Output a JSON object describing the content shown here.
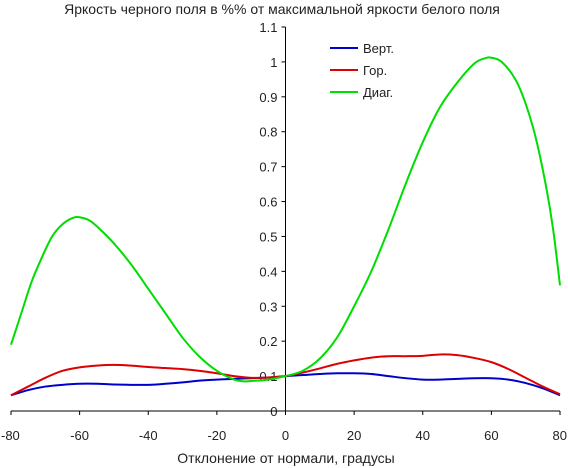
{
  "chart_data": {
    "type": "line",
    "title": "Яркость черного поля в %% от максимальной яркости белого поля",
    "xlabel": "Отклонение от нормали, градусы",
    "ylabel": "",
    "xlim": [
      -80,
      80
    ],
    "ylim": [
      0,
      1.1
    ],
    "x_ticks": [
      -80,
      -60,
      -40,
      -20,
      0,
      20,
      40,
      60,
      80
    ],
    "y_ticks": [
      0,
      0.1,
      0.2,
      0.3,
      0.4,
      0.5,
      0.6,
      0.7,
      0.8,
      0.9,
      1,
      1.1
    ],
    "grid": false,
    "legend_position": "top-right",
    "series": [
      {
        "name": "Верт.",
        "color": "#0000cc",
        "points": [
          [
            -80,
            0.045
          ],
          [
            -75,
            0.06
          ],
          [
            -70,
            0.07
          ],
          [
            -65,
            0.075
          ],
          [
            -60,
            0.078
          ],
          [
            -55,
            0.078
          ],
          [
            -50,
            0.076
          ],
          [
            -45,
            0.075
          ],
          [
            -40,
            0.075
          ],
          [
            -35,
            0.078
          ],
          [
            -30,
            0.082
          ],
          [
            -25,
            0.087
          ],
          [
            -20,
            0.09
          ],
          [
            -15,
            0.092
          ],
          [
            -10,
            0.094
          ],
          [
            -5,
            0.096
          ],
          [
            0,
            0.1
          ],
          [
            5,
            0.103
          ],
          [
            10,
            0.106
          ],
          [
            15,
            0.108
          ],
          [
            20,
            0.108
          ],
          [
            25,
            0.106
          ],
          [
            30,
            0.1
          ],
          [
            35,
            0.094
          ],
          [
            40,
            0.09
          ],
          [
            45,
            0.09
          ],
          [
            50,
            0.092
          ],
          [
            55,
            0.094
          ],
          [
            60,
            0.094
          ],
          [
            65,
            0.09
          ],
          [
            70,
            0.08
          ],
          [
            75,
            0.065
          ],
          [
            80,
            0.045
          ]
        ]
      },
      {
        "name": "Гор.",
        "color": "#dd0000",
        "points": [
          [
            -80,
            0.045
          ],
          [
            -75,
            0.07
          ],
          [
            -70,
            0.095
          ],
          [
            -65,
            0.115
          ],
          [
            -60,
            0.125
          ],
          [
            -55,
            0.13
          ],
          [
            -50,
            0.132
          ],
          [
            -45,
            0.13
          ],
          [
            -40,
            0.126
          ],
          [
            -35,
            0.123
          ],
          [
            -30,
            0.12
          ],
          [
            -25,
            0.115
          ],
          [
            -20,
            0.108
          ],
          [
            -15,
            0.1
          ],
          [
            -10,
            0.095
          ],
          [
            -5,
            0.096
          ],
          [
            0,
            0.1
          ],
          [
            5,
            0.11
          ],
          [
            10,
            0.122
          ],
          [
            15,
            0.135
          ],
          [
            20,
            0.145
          ],
          [
            25,
            0.153
          ],
          [
            30,
            0.157
          ],
          [
            35,
            0.157
          ],
          [
            40,
            0.158
          ],
          [
            45,
            0.162
          ],
          [
            50,
            0.16
          ],
          [
            55,
            0.152
          ],
          [
            60,
            0.14
          ],
          [
            65,
            0.12
          ],
          [
            70,
            0.095
          ],
          [
            75,
            0.07
          ],
          [
            80,
            0.048
          ]
        ]
      },
      {
        "name": "Диаг.",
        "color": "#00dd00",
        "points": [
          [
            -80,
            0.19
          ],
          [
            -77,
            0.28
          ],
          [
            -74,
            0.37
          ],
          [
            -71,
            0.44
          ],
          [
            -68,
            0.5
          ],
          [
            -65,
            0.535
          ],
          [
            -62,
            0.553
          ],
          [
            -60,
            0.555
          ],
          [
            -57,
            0.545
          ],
          [
            -54,
            0.52
          ],
          [
            -50,
            0.48
          ],
          [
            -45,
            0.42
          ],
          [
            -40,
            0.35
          ],
          [
            -35,
            0.28
          ],
          [
            -30,
            0.21
          ],
          [
            -25,
            0.155
          ],
          [
            -20,
            0.115
          ],
          [
            -15,
            0.09
          ],
          [
            -12,
            0.085
          ],
          [
            -10,
            0.086
          ],
          [
            -5,
            0.09
          ],
          [
            0,
            0.1
          ],
          [
            5,
            0.115
          ],
          [
            10,
            0.15
          ],
          [
            15,
            0.21
          ],
          [
            20,
            0.3
          ],
          [
            25,
            0.4
          ],
          [
            30,
            0.52
          ],
          [
            35,
            0.65
          ],
          [
            40,
            0.77
          ],
          [
            45,
            0.87
          ],
          [
            50,
            0.94
          ],
          [
            55,
            0.995
          ],
          [
            58,
            1.01
          ],
          [
            60,
            1.012
          ],
          [
            63,
            1.0
          ],
          [
            67,
            0.95
          ],
          [
            70,
            0.88
          ],
          [
            73,
            0.78
          ],
          [
            76,
            0.64
          ],
          [
            78,
            0.52
          ],
          [
            80,
            0.36
          ]
        ]
      }
    ]
  }
}
